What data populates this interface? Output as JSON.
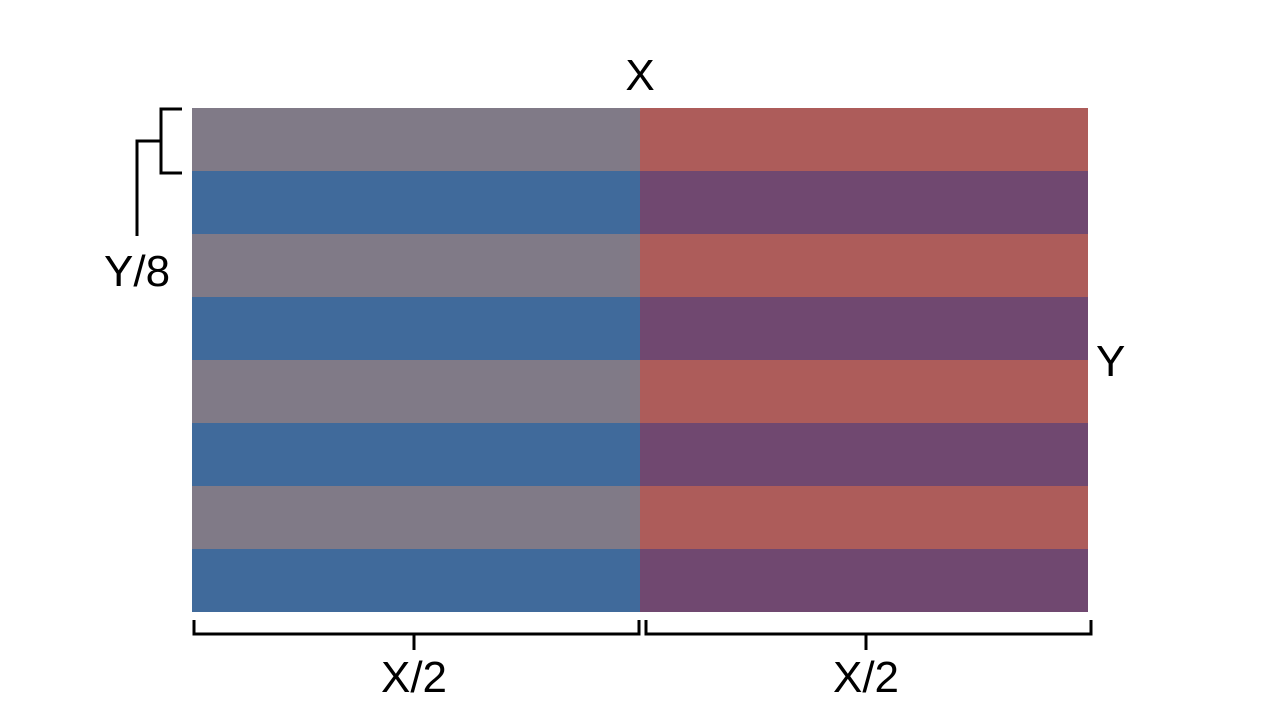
{
  "labels": {
    "top_x": "X",
    "right_y": "Y",
    "stripe_height": "Y/8",
    "half_left": "X/2",
    "half_right": "X/2"
  },
  "grid": {
    "columns": 2,
    "rows": 8,
    "colors": {
      "left_even": "#807a87",
      "left_odd": "#406a9b",
      "right_even": "#ad5c5a",
      "right_odd": "#704870"
    }
  },
  "colors": {
    "bracket": "#000000",
    "background": "#ffffff"
  }
}
